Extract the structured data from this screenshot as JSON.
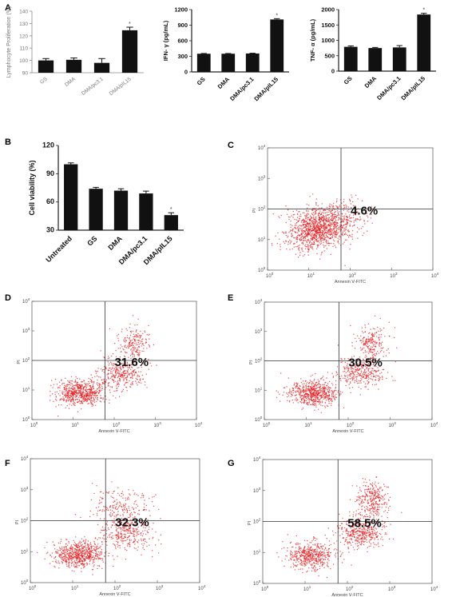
{
  "figure": {
    "panel_labels": [
      "A",
      "B",
      "C",
      "D",
      "E",
      "F",
      "G"
    ]
  },
  "colors": {
    "bar": "#111111",
    "dot": "#e41a1c",
    "axis": "#222222",
    "gray_axis": "#8a8a8a"
  },
  "chart_data": [
    {
      "id": "A1",
      "type": "bar",
      "ylabel": "Lymphocyte Proliferation (%)",
      "categories": [
        "GS",
        "DMA",
        "DMA/pc3.1",
        "DMA/pIL15"
      ],
      "values": [
        100,
        100.5,
        98,
        124.5
      ],
      "errors": [
        1.5,
        1.5,
        3.5,
        2.5
      ],
      "significance": [
        "",
        "",
        "",
        "*"
      ],
      "ylim": [
        90,
        140
      ],
      "yticks": [
        90,
        100,
        110,
        120,
        130,
        140
      ],
      "ytick_labels": [
        "90",
        "100",
        "110",
        "120",
        "130",
        "140"
      ],
      "grid": false
    },
    {
      "id": "A2",
      "type": "bar",
      "ylabel": "IFN- γ (pg/mL)",
      "categories": [
        "GS",
        "DMA",
        "DMA/pc3.1",
        "DMA/pIL15"
      ],
      "values": [
        350,
        350,
        355,
        1010
      ],
      "errors": [
        5,
        5,
        5,
        15
      ],
      "significance": [
        "",
        "",
        "",
        "*"
      ],
      "ylim": [
        0,
        1200
      ],
      "yticks": [
        0,
        300,
        600,
        900,
        1200
      ],
      "ytick_labels": [
        "0",
        "300",
        "600",
        "900",
        "1200"
      ],
      "grid": false
    },
    {
      "id": "A3",
      "type": "bar",
      "ylabel": "TNF- α (pg/mL)",
      "categories": [
        "GS",
        "DMA",
        "DMA/pc3.1",
        "DMA/pIL15"
      ],
      "values": [
        790,
        750,
        770,
        1840
      ],
      "errors": [
        30,
        20,
        60,
        40
      ],
      "significance": [
        "",
        "",
        "",
        "*"
      ],
      "ylim": [
        0,
        2000
      ],
      "yticks": [
        0,
        500,
        1000,
        1500,
        2000
      ],
      "ytick_labels": [
        "0",
        "500",
        "1000",
        "1500",
        "2000"
      ],
      "grid": false
    },
    {
      "id": "B",
      "type": "bar",
      "ylabel": "Cell viability (%)",
      "categories": [
        "Untreated",
        "GS",
        "DMA",
        "DMA/pc3.1",
        "DMA/pIL15"
      ],
      "values": [
        100,
        74,
        72,
        69,
        46
      ],
      "errors": [
        1.5,
        1.5,
        2,
        2.5,
        2.5
      ],
      "significance": [
        "",
        "",
        "",
        "",
        "*"
      ],
      "ylim": [
        30,
        120
      ],
      "yticks": [
        30,
        60,
        90,
        120
      ],
      "ytick_labels": [
        "30",
        "60",
        "90",
        "120"
      ],
      "grid": false
    },
    {
      "id": "C",
      "type": "scatter",
      "xlabel": "Annexin Ⅴ-FITC",
      "ylabel": "PI",
      "x_scale": "log",
      "y_scale": "log",
      "xlim": [
        1,
        10000
      ],
      "ylim": [
        1,
        10000
      ],
      "quadrant_gates": [
        60,
        100
      ],
      "annotation": "4.6%",
      "populations": [
        {
          "center": [
            17,
            25
          ],
          "spread": [
            0.35,
            0.3
          ],
          "count": 900
        },
        {
          "center": [
            60,
            60
          ],
          "spread": [
            0.35,
            0.3
          ],
          "count": 220
        },
        {
          "center": [
            8,
            10
          ],
          "spread": [
            0.3,
            0.3
          ],
          "count": 160
        }
      ]
    },
    {
      "id": "D",
      "type": "scatter",
      "xlabel": "Annexin Ⅴ-FITC",
      "ylabel": "PI",
      "x_scale": "log",
      "y_scale": "log",
      "xlim": [
        1,
        10000
      ],
      "ylim": [
        1,
        10000
      ],
      "quadrant_gates": [
        60,
        100
      ],
      "annotation": "31.6%",
      "populations": [
        {
          "center": [
            15,
            8
          ],
          "spread": [
            0.3,
            0.22
          ],
          "count": 650
        },
        {
          "center": [
            140,
            35
          ],
          "spread": [
            0.28,
            0.25
          ],
          "count": 320
        },
        {
          "center": [
            300,
            350
          ],
          "spread": [
            0.2,
            0.3
          ],
          "count": 200
        }
      ]
    },
    {
      "id": "E",
      "type": "scatter",
      "xlabel": "Annexin Ⅴ-FITC",
      "ylabel": "PI",
      "x_scale": "log",
      "y_scale": "log",
      "xlim": [
        1,
        10000
      ],
      "ylim": [
        1,
        10000
      ],
      "quadrant_gates": [
        60,
        100
      ],
      "annotation": "30.5%",
      "populations": [
        {
          "center": [
            15,
            8
          ],
          "spread": [
            0.3,
            0.22
          ],
          "count": 620
        },
        {
          "center": [
            200,
            40
          ],
          "spread": [
            0.28,
            0.25
          ],
          "count": 330
        },
        {
          "center": [
            350,
            400
          ],
          "spread": [
            0.2,
            0.3
          ],
          "count": 220
        }
      ]
    },
    {
      "id": "F",
      "type": "scatter",
      "xlabel": "Annexin Ⅴ-FITC",
      "ylabel": "PI",
      "x_scale": "log",
      "y_scale": "log",
      "xlim": [
        1,
        10000
      ],
      "ylim": [
        1,
        10000
      ],
      "quadrant_gates": [
        60,
        100
      ],
      "annotation": "32.3%",
      "populations": [
        {
          "center": [
            14,
            8
          ],
          "spread": [
            0.3,
            0.22
          ],
          "count": 650
        },
        {
          "center": [
            180,
            40
          ],
          "spread": [
            0.3,
            0.25
          ],
          "count": 330
        },
        {
          "center": [
            150,
            300
          ],
          "spread": [
            0.35,
            0.3
          ],
          "count": 200
        }
      ]
    },
    {
      "id": "G",
      "type": "scatter",
      "xlabel": "Annexin Ⅴ-FITC",
      "ylabel": "PI",
      "x_scale": "log",
      "y_scale": "log",
      "xlim": [
        1,
        10000
      ],
      "ylim": [
        1,
        10000
      ],
      "quadrant_gates": [
        60,
        100
      ],
      "annotation": "58.5%",
      "populations": [
        {
          "center": [
            14,
            8
          ],
          "spread": [
            0.28,
            0.22
          ],
          "count": 500
        },
        {
          "center": [
            200,
            45
          ],
          "spread": [
            0.28,
            0.25
          ],
          "count": 420
        },
        {
          "center": [
            400,
            500
          ],
          "spread": [
            0.2,
            0.3
          ],
          "count": 300
        }
      ]
    }
  ]
}
